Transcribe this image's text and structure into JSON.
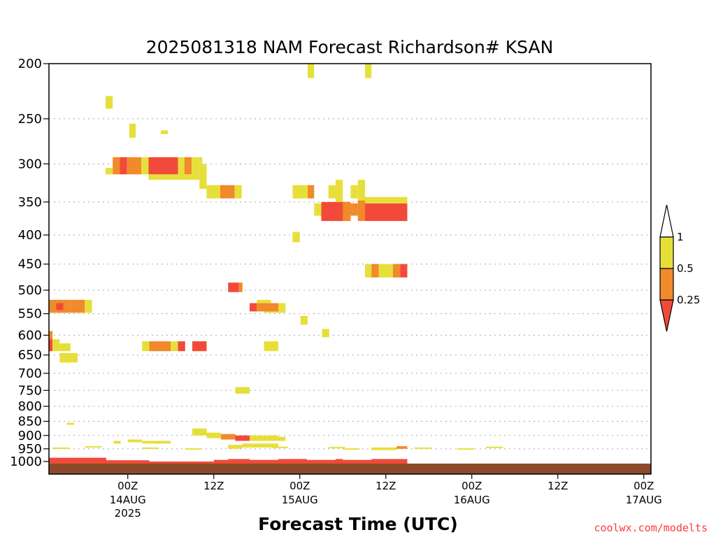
{
  "chart_data": {
    "type": "heatmap",
    "title": "2025081318 NAM Forecast Richardson# KSAN",
    "xlabel": "Forecast Time (UTC)",
    "ylabel": "",
    "credit": "coolwx.com/modelts",
    "y_scale": "log",
    "y_direction": "descending",
    "ylim": [
      200,
      1050
    ],
    "xlim_hours": [
      -5,
      79
    ],
    "y_ticks": [
      "200",
      "250",
      "300",
      "350",
      "400",
      "450",
      "500",
      "550",
      "600",
      "650",
      "700",
      "750",
      "800",
      "850",
      "900",
      "950",
      "1000"
    ],
    "x_ticks": [
      {
        "label": "00Z",
        "sublabel": "14AUG",
        "sublabel2": "2025",
        "hour": 6
      },
      {
        "label": "12Z",
        "sublabel": "",
        "sublabel2": "",
        "hour": 18
      },
      {
        "label": "00Z",
        "sublabel": "15AUG",
        "sublabel2": "",
        "hour": 30
      },
      {
        "label": "12Z",
        "sublabel": "",
        "sublabel2": "",
        "hour": 42
      },
      {
        "label": "00Z",
        "sublabel": "16AUG",
        "sublabel2": "",
        "hour": 54
      },
      {
        "label": "12Z",
        "sublabel": "",
        "sublabel2": "",
        "hour": 66
      },
      {
        "label": "00Z",
        "sublabel": "17AUG",
        "sublabel2": "",
        "hour": 78
      }
    ],
    "gridlines": "dotted horizontal",
    "legend": {
      "placement": "right",
      "bins": [
        {
          "range": "< 0.25",
          "color": "#f24a3a"
        },
        {
          "range": "0.25 - 0.5",
          "color": "#f08a2a"
        },
        {
          "range": "0.5 - 1",
          "color": "#e6df3a"
        },
        {
          "range": "> 1",
          "color": "#ffffff"
        }
      ],
      "labels": [
        "1",
        "0.5",
        "0.25"
      ]
    },
    "ground_color": "#8b4a2a",
    "cells": [
      {
        "t0": 31.1,
        "t1": 32.0,
        "p0": 200,
        "p1": 212,
        "c": "y"
      },
      {
        "t0": 39.1,
        "t1": 40.0,
        "p0": 200,
        "p1": 212,
        "c": "y"
      },
      {
        "t0": 2.9,
        "t1": 3.9,
        "p0": 228,
        "p1": 240,
        "c": "y"
      },
      {
        "t0": 6.2,
        "t1": 7.1,
        "p0": 255,
        "p1": 270,
        "c": "y"
      },
      {
        "t0": 10.6,
        "t1": 11.6,
        "p0": 262,
        "p1": 266,
        "c": "y"
      },
      {
        "t0": 2.9,
        "t1": 3.9,
        "p0": 305,
        "p1": 313,
        "c": "y"
      },
      {
        "t0": 3.9,
        "t1": 4.9,
        "p0": 292,
        "p1": 313,
        "c": "o"
      },
      {
        "t0": 4.9,
        "t1": 5.9,
        "p0": 292,
        "p1": 313,
        "c": "r"
      },
      {
        "t0": 5.9,
        "t1": 7.9,
        "p0": 292,
        "p1": 313,
        "c": "o"
      },
      {
        "t0": 7.9,
        "t1": 8.9,
        "p0": 292,
        "p1": 313,
        "c": "y"
      },
      {
        "t0": 8.9,
        "t1": 13.0,
        "p0": 292,
        "p1": 313,
        "c": "r"
      },
      {
        "t0": 13.0,
        "t1": 13.9,
        "p0": 292,
        "p1": 313,
        "c": "y"
      },
      {
        "t0": 13.9,
        "t1": 14.9,
        "p0": 292,
        "p1": 313,
        "c": "o"
      },
      {
        "t0": 14.9,
        "t1": 15.9,
        "p0": 292,
        "p1": 313,
        "c": "y"
      },
      {
        "t0": 15.9,
        "t1": 16.4,
        "p0": 292,
        "p1": 313,
        "c": "y"
      },
      {
        "t0": 8.9,
        "t1": 16.4,
        "p0": 313,
        "p1": 320,
        "c": "y"
      },
      {
        "t0": 16.0,
        "t1": 17.0,
        "p0": 300,
        "p1": 332,
        "c": "y"
      },
      {
        "t0": 17.0,
        "t1": 18.9,
        "p0": 327,
        "p1": 345,
        "c": "y"
      },
      {
        "t0": 18.9,
        "t1": 20.9,
        "p0": 327,
        "p1": 345,
        "c": "o"
      },
      {
        "t0": 20.9,
        "t1": 21.9,
        "p0": 327,
        "p1": 345,
        "c": "y"
      },
      {
        "t0": 29.0,
        "t1": 31.1,
        "p0": 327,
        "p1": 345,
        "c": "y"
      },
      {
        "t0": 31.1,
        "t1": 32.0,
        "p0": 327,
        "p1": 345,
        "c": "o"
      },
      {
        "t0": 32.0,
        "t1": 33.0,
        "p0": 352,
        "p1": 370,
        "c": "y"
      },
      {
        "t0": 33.0,
        "t1": 37.1,
        "p0": 350,
        "p1": 378,
        "c": "r"
      },
      {
        "t0": 34.0,
        "t1": 35.0,
        "p0": 327,
        "p1": 345,
        "c": "y"
      },
      {
        "t0": 35.0,
        "t1": 36.0,
        "p0": 320,
        "p1": 350,
        "c": "y"
      },
      {
        "t0": 36.0,
        "t1": 37.1,
        "p0": 350,
        "p1": 378,
        "c": "o"
      },
      {
        "t0": 37.1,
        "t1": 38.1,
        "p0": 327,
        "p1": 345,
        "c": "y"
      },
      {
        "t0": 37.1,
        "t1": 38.1,
        "p0": 352,
        "p1": 370,
        "c": "o"
      },
      {
        "t0": 38.1,
        "t1": 39.1,
        "p0": 320,
        "p1": 350,
        "c": "y"
      },
      {
        "t0": 38.1,
        "t1": 39.1,
        "p0": 348,
        "p1": 378,
        "c": "o"
      },
      {
        "t0": 39.1,
        "t1": 45.0,
        "p0": 352,
        "p1": 378,
        "c": "r"
      },
      {
        "t0": 39.1,
        "t1": 45.0,
        "p0": 343,
        "p1": 352,
        "c": "y"
      },
      {
        "t0": 29.0,
        "t1": 30.0,
        "p0": 395,
        "p1": 412,
        "c": "y"
      },
      {
        "t0": 39.1,
        "t1": 40.0,
        "p0": 450,
        "p1": 475,
        "c": "y"
      },
      {
        "t0": 40.0,
        "t1": 41.0,
        "p0": 450,
        "p1": 475,
        "c": "o"
      },
      {
        "t0": 41.0,
        "t1": 43.0,
        "p0": 450,
        "p1": 475,
        "c": "y"
      },
      {
        "t0": 43.0,
        "t1": 44.0,
        "p0": 450,
        "p1": 475,
        "c": "o"
      },
      {
        "t0": 44.0,
        "t1": 45.0,
        "p0": 450,
        "p1": 475,
        "c": "r"
      },
      {
        "t0": 20.0,
        "t1": 21.5,
        "p0": 485,
        "p1": 504,
        "c": "r"
      },
      {
        "t0": 21.5,
        "t1": 22.0,
        "p0": 485,
        "p1": 504,
        "c": "o"
      },
      {
        "t0": 23.0,
        "t1": 24.0,
        "p0": 527,
        "p1": 545,
        "c": "r"
      },
      {
        "t0": 24.0,
        "t1": 27.0,
        "p0": 527,
        "p1": 545,
        "c": "o"
      },
      {
        "t0": 27.0,
        "t1": 28.0,
        "p0": 527,
        "p1": 545,
        "c": "y"
      },
      {
        "t0": 24.0,
        "t1": 26.0,
        "p0": 520,
        "p1": 527,
        "c": "y"
      },
      {
        "t0": 25.0,
        "t1": 28.0,
        "p0": 545,
        "p1": 548,
        "c": "y"
      },
      {
        "t0": 30.1,
        "t1": 31.1,
        "p0": 555,
        "p1": 575,
        "c": "y"
      },
      {
        "t0": 33.1,
        "t1": 34.1,
        "p0": 585,
        "p1": 605,
        "c": "y"
      },
      {
        "t0": -5.0,
        "t1": -4.0,
        "p0": 520,
        "p1": 548,
        "c": "o"
      },
      {
        "t0": -4.0,
        "t1": -2.0,
        "p0": 520,
        "p1": 548,
        "c": "o"
      },
      {
        "t0": -2.0,
        "t1": 0.0,
        "p0": 520,
        "p1": 548,
        "c": "o"
      },
      {
        "t0": 0.0,
        "t1": 1.0,
        "p0": 520,
        "p1": 548,
        "c": "y"
      },
      {
        "t0": -4.0,
        "t1": -3.0,
        "p0": 527,
        "p1": 542,
        "c": "r"
      },
      {
        "t0": -5.0,
        "t1": -4.5,
        "p0": 590,
        "p1": 610,
        "c": "o"
      },
      {
        "t0": -5.0,
        "t1": -4.5,
        "p0": 610,
        "p1": 640,
        "c": "r"
      },
      {
        "t0": -4.5,
        "t1": -3.5,
        "p0": 610,
        "p1": 640,
        "c": "y"
      },
      {
        "t0": -3.5,
        "t1": -2.0,
        "p0": 620,
        "p1": 640,
        "c": "y"
      },
      {
        "t0": -3.5,
        "t1": -1.0,
        "p0": 645,
        "p1": 670,
        "c": "y"
      },
      {
        "t0": 8.0,
        "t1": 9.0,
        "p0": 615,
        "p1": 640,
        "c": "y"
      },
      {
        "t0": 9.0,
        "t1": 12.0,
        "p0": 615,
        "p1": 640,
        "c": "o"
      },
      {
        "t0": 12.0,
        "t1": 13.0,
        "p0": 615,
        "p1": 640,
        "c": "y"
      },
      {
        "t0": 13.0,
        "t1": 14.0,
        "p0": 615,
        "p1": 640,
        "c": "r"
      },
      {
        "t0": 15.0,
        "t1": 17.0,
        "p0": 615,
        "p1": 640,
        "c": "r"
      },
      {
        "t0": 25.0,
        "t1": 27.0,
        "p0": 615,
        "p1": 640,
        "c": "y"
      },
      {
        "t0": 21.0,
        "t1": 23.0,
        "p0": 740,
        "p1": 760,
        "c": "y"
      },
      {
        "t0": -2.5,
        "t1": -1.5,
        "p0": 855,
        "p1": 862,
        "c": "y"
      },
      {
        "t0": 15.0,
        "t1": 17.0,
        "p0": 875,
        "p1": 900,
        "c": "y"
      },
      {
        "t0": 17.0,
        "t1": 19.0,
        "p0": 890,
        "p1": 910,
        "c": "y"
      },
      {
        "t0": 19.0,
        "t1": 21.0,
        "p0": 895,
        "p1": 915,
        "c": "o"
      },
      {
        "t0": 21.0,
        "t1": 23.0,
        "p0": 900,
        "p1": 920,
        "c": "r"
      },
      {
        "t0": 23.0,
        "t1": 27.0,
        "p0": 900,
        "p1": 920,
        "c": "y"
      },
      {
        "t0": 27.0,
        "t1": 28.0,
        "p0": 905,
        "p1": 920,
        "c": "y"
      },
      {
        "t0": 6.0,
        "t1": 8.0,
        "p0": 915,
        "p1": 925,
        "c": "y"
      },
      {
        "t0": 8.0,
        "t1": 12.0,
        "p0": 920,
        "p1": 930,
        "c": "y"
      },
      {
        "t0": 22.0,
        "t1": 27.0,
        "p0": 930,
        "p1": 945,
        "c": "y"
      },
      {
        "t0": 20.0,
        "t1": 22.0,
        "p0": 935,
        "p1": 950,
        "c": "y"
      },
      {
        "t0": 4.0,
        "t1": 5.0,
        "p0": 920,
        "p1": 930,
        "c": "y"
      },
      {
        "t0": 43.5,
        "t1": 45.0,
        "p0": 940,
        "p1": 950,
        "c": "o"
      },
      {
        "t0": 40.0,
        "t1": 43.5,
        "p0": 945,
        "p1": 955,
        "c": "y"
      },
      {
        "t0": -5.0,
        "t1": 3.0,
        "p0": 985,
        "p1": 1040,
        "c": "r"
      },
      {
        "t0": 3.0,
        "t1": 9.0,
        "p0": 995,
        "p1": 1040,
        "c": "r"
      },
      {
        "t0": 9.0,
        "t1": 18.0,
        "p0": 1000,
        "p1": 1040,
        "c": "r"
      },
      {
        "t0": 18.0,
        "t1": 29.0,
        "p0": 990,
        "p1": 1040,
        "c": "r"
      },
      {
        "t0": 29.0,
        "t1": 45.0,
        "p0": 990,
        "p1": 1040,
        "c": "r"
      }
    ]
  }
}
